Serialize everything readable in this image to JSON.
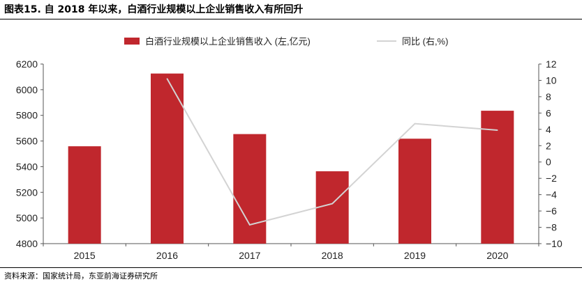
{
  "figure_title": "图表15. 自 2018 年以来，白酒行业规模以上企业销售收入有所回升",
  "source": "资料来源：国家统计局，东亚前海证券研究所",
  "chart_data": {
    "type": "bar",
    "categories": [
      "2015",
      "2016",
      "2017",
      "2018",
      "2019",
      "2020"
    ],
    "series": [
      {
        "name": "白酒行业规模以上企业销售收入 (左,亿元)",
        "type": "bar",
        "axis": "left",
        "values": [
          5559,
          6126,
          5654,
          5364,
          5618,
          5836
        ],
        "color": "#c0272d"
      },
      {
        "name": "同比 (右,%)",
        "type": "line",
        "axis": "right",
        "values": [
          10.2,
          -7.7,
          -5.1,
          4.7,
          3.9
        ],
        "x": [
          "2016",
          "2017",
          "2018",
          "2019",
          "2020"
        ],
        "color": "#d3d3d3"
      }
    ],
    "y_left": {
      "lim": [
        4800,
        6200
      ],
      "ticks": [
        "4800",
        "5000",
        "5200",
        "5400",
        "5600",
        "5800",
        "6000",
        "6200"
      ]
    },
    "y_right": {
      "lim": [
        -10,
        12
      ],
      "ticks": [
        "−10",
        "−8",
        "−6",
        "−4",
        "−2",
        "0",
        "2",
        "4",
        "6",
        "8",
        "10",
        "12"
      ]
    },
    "legend_position": "top",
    "grid": false
  }
}
